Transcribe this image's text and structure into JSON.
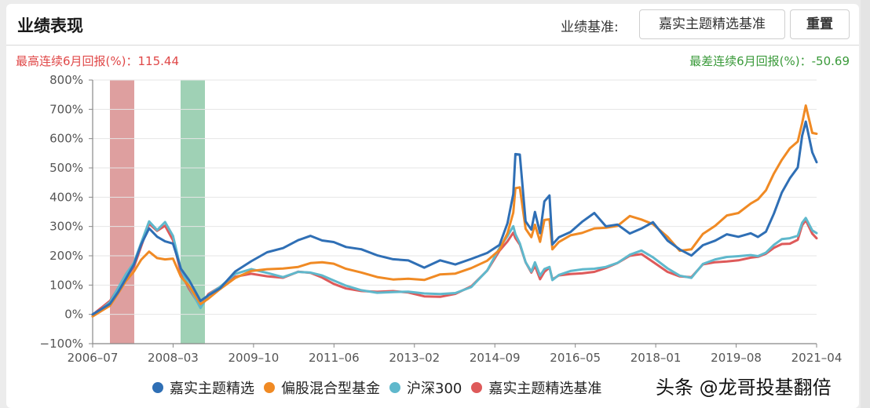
{
  "header": {
    "title": "业绩表现",
    "benchmark_label": "业绩基准:",
    "benchmark_button": "嘉实主题精选基准",
    "reset_button": "重置"
  },
  "stats": {
    "max_6m_return": "最高连续6月回报(%)：115.44",
    "min_6m_return": "最差连续6月回报(%)：-50.69",
    "max_color": "#e04848",
    "min_color": "#3a9a3a"
  },
  "watermark": "头条 @龙哥投基翻倍",
  "chart_data": {
    "type": "line",
    "title": "业绩表现",
    "xlabel": "",
    "ylabel": "",
    "ylim": [
      -100,
      800
    ],
    "yticks": [
      "800%",
      "700%",
      "600%",
      "500%",
      "400%",
      "300%",
      "200%",
      "100%",
      "0%",
      "−100%"
    ],
    "xticks": [
      "2006-07",
      "2008-03",
      "2009-10",
      "2011-06",
      "2013-02",
      "2014-09",
      "2016-05",
      "2018-01",
      "2019-08",
      "2021-04"
    ],
    "grid": true,
    "legend_position": "bottom",
    "highlight_bands": [
      {
        "label": "最高连续6月回报",
        "color": "#d88e8e",
        "from": "2007-01",
        "to": "2007-07"
      },
      {
        "label": "最差连续6月回报",
        "color": "#8ec9a8",
        "from": "2008-04",
        "to": "2008-10"
      }
    ],
    "x": [
      0.0,
      0.024,
      0.035,
      0.046,
      0.057,
      0.067,
      0.078,
      0.089,
      0.1,
      0.111,
      0.122,
      0.133,
      0.149,
      0.16,
      0.176,
      0.197,
      0.219,
      0.241,
      0.263,
      0.284,
      0.301,
      0.317,
      0.333,
      0.35,
      0.371,
      0.393,
      0.415,
      0.436,
      0.458,
      0.48,
      0.501,
      0.523,
      0.545,
      0.562,
      0.573,
      0.581,
      0.584,
      0.59,
      0.598,
      0.606,
      0.611,
      0.618,
      0.624,
      0.631,
      0.635,
      0.644,
      0.66,
      0.676,
      0.693,
      0.709,
      0.725,
      0.742,
      0.758,
      0.774,
      0.794,
      0.811,
      0.827,
      0.843,
      0.86,
      0.876,
      0.892,
      0.909,
      0.919,
      0.93,
      0.941,
      0.952,
      0.963,
      0.974,
      0.98,
      0.985,
      0.994,
      1.0
    ],
    "series": [
      {
        "name": "嘉实主题精选",
        "color": "#2f6fb5",
        "values": [
          0,
          43,
          83,
          123,
          164,
          231,
          292,
          271,
          257,
          244,
          150,
          110,
          43,
          70,
          97,
          150,
          177,
          204,
          222,
          257,
          276,
          257,
          244,
          222,
          217,
          204,
          196,
          190,
          158,
          177,
          164,
          190,
          217,
          244,
          311,
          404,
          540,
          545,
          324,
          297,
          351,
          271,
          378,
          404,
          244,
          271,
          284,
          311,
          338,
          297,
          311,
          284,
          297,
          311,
          244,
          217,
          204,
          244,
          257,
          271,
          257,
          271,
          266,
          290,
          350,
          415,
          457,
          495,
          610,
          665,
          560,
          520
        ]
      },
      {
        "name": "偏股混合型基金",
        "color": "#f08a24",
        "values": [
          0,
          37,
          72,
          108,
          139,
          185,
          220,
          200,
          190,
          185,
          120,
          95,
          40,
          62,
          90,
          120,
          140,
          150,
          160,
          170,
          180,
          175,
          165,
          150,
          145,
          135,
          125,
          120,
          110,
          130,
          140,
          165,
          190,
          220,
          270,
          340,
          430,
          440,
          300,
          265,
          300,
          240,
          320,
          330,
          230,
          250,
          265,
          270,
          290,
          300,
          310,
          340,
          320,
          300,
          260,
          220,
          230,
          280,
          300,
          330,
          340,
          380,
          400,
          430,
          480,
          520,
          560,
          590,
          660,
          720,
          620,
          610
        ]
      },
      {
        "name": "沪深300",
        "color": "#5fb8cc",
        "values": [
          0,
          43,
          83,
          130,
          175,
          250,
          325,
          290,
          310,
          260,
          150,
          100,
          30,
          70,
          90,
          130,
          150,
          145,
          135,
          150,
          140,
          125,
          110,
          100,
          90,
          80,
          75,
          70,
          65,
          70,
          80,
          100,
          150,
          220,
          260,
          300,
          280,
          250,
          180,
          140,
          170,
          130,
          160,
          170,
          120,
          130,
          140,
          150,
          160,
          170,
          180,
          200,
          210,
          190,
          160,
          140,
          130,
          170,
          180,
          190,
          200,
          210,
          205,
          210,
          230,
          250,
          260,
          275,
          320,
          330,
          280,
          270
        ]
      },
      {
        "name": "嘉实主题精选基准",
        "color": "#de5a5a",
        "values": [
          0,
          40,
          80,
          125,
          168,
          240,
          312,
          280,
          295,
          250,
          145,
          96,
          30,
          66,
          86,
          124,
          142,
          138,
          130,
          143,
          134,
          120,
          106,
          96,
          86,
          76,
          72,
          68,
          62,
          67,
          77,
          96,
          143,
          210,
          248,
          285,
          268,
          240,
          172,
          135,
          163,
          125,
          153,
          163,
          115,
          125,
          134,
          144,
          153,
          163,
          172,
          192,
          201,
          182,
          153,
          135,
          125,
          163,
          172,
          182,
          192,
          200,
          196,
          200,
          220,
          240,
          248,
          262,
          305,
          315,
          268,
          258
        ]
      }
    ]
  },
  "legend": [
    {
      "label": "嘉实主题精选",
      "color": "#2f6fb5"
    },
    {
      "label": "偏股混合型基金",
      "color": "#f08a24"
    },
    {
      "label": "沪深300",
      "color": "#5fb8cc"
    },
    {
      "label": "嘉实主题精选基准",
      "color": "#de5a5a"
    }
  ]
}
